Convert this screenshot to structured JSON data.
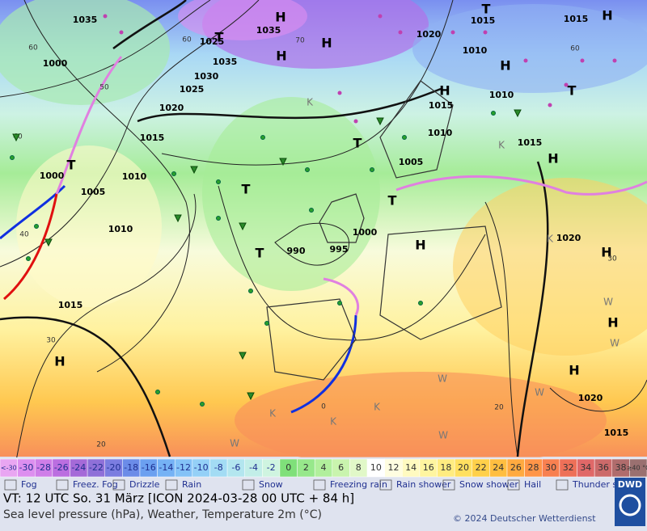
{
  "map": {
    "pressure_labels": [
      "1035",
      "1025",
      "1035",
      "1035",
      "1030",
      "1025",
      "1020",
      "1015",
      "1010",
      "1005",
      "1000",
      "1000",
      "1010",
      "1015",
      "990",
      "995",
      "1000",
      "1020",
      "1015",
      "1015",
      "1010",
      "1010",
      "1015",
      "1010",
      "1005",
      "1015",
      "1020",
      "1020",
      "1015"
    ],
    "centers": [
      "H",
      "H",
      "H",
      "H",
      "H",
      "H",
      "H",
      "H",
      "H",
      "H",
      "H",
      "H",
      "T",
      "T",
      "T",
      "T",
      "T",
      "T",
      "T",
      "T"
    ],
    "temperature_labels": [
      "60",
      "50",
      "40",
      "40",
      "30",
      "20",
      "70",
      "60",
      "60",
      "0",
      "20",
      "30"
    ],
    "other_labels": [
      "K",
      "K",
      "K",
      "K",
      "K",
      "K",
      "W",
      "W",
      "W",
      "W",
      "W",
      "W"
    ]
  },
  "legend": {
    "cells": [
      {
        "label": "<-30",
        "color": "#e9a6f2"
      },
      {
        "label": "-30",
        "color": "#dd8fef"
      },
      {
        "label": "-28",
        "color": "#cf7ee8"
      },
      {
        "label": "-26",
        "color": "#bb6ee0"
      },
      {
        "label": "-24",
        "color": "#a56ad8"
      },
      {
        "label": "-22",
        "color": "#8f70d8"
      },
      {
        "label": "-20",
        "color": "#7b7de0"
      },
      {
        "label": "-18",
        "color": "#6b8ce8"
      },
      {
        "label": "-16",
        "color": "#6ba0f0"
      },
      {
        "label": "-14",
        "color": "#75b2f5"
      },
      {
        "label": "-12",
        "color": "#84c2f7"
      },
      {
        "label": "-10",
        "color": "#94d0f7"
      },
      {
        "label": "-8",
        "color": "#a3dcf4"
      },
      {
        "label": "-6",
        "color": "#b3e6ef"
      },
      {
        "label": "-4",
        "color": "#c2eee8"
      },
      {
        "label": "-2",
        "color": "#cff4e0"
      },
      {
        "label": "0",
        "color": "#7fe07a"
      },
      {
        "label": "2",
        "color": "#97e88b"
      },
      {
        "label": "4",
        "color": "#b1ef9c"
      },
      {
        "label": "6",
        "color": "#c9f4ae"
      },
      {
        "label": "8",
        "color": "#e1f8c8"
      },
      {
        "label": "10",
        "color": "#ffffff"
      },
      {
        "label": "12",
        "color": "#fffde0"
      },
      {
        "label": "14",
        "color": "#fffac0"
      },
      {
        "label": "16",
        "color": "#fff5a0"
      },
      {
        "label": "18",
        "color": "#ffec80"
      },
      {
        "label": "20",
        "color": "#ffe060"
      },
      {
        "label": "22",
        "color": "#ffd04a"
      },
      {
        "label": "24",
        "color": "#ffbe40"
      },
      {
        "label": "26",
        "color": "#ffaa40"
      },
      {
        "label": "28",
        "color": "#ff9548"
      },
      {
        "label": "30",
        "color": "#f88050"
      },
      {
        "label": "32",
        "color": "#ee7058"
      },
      {
        "label": "34",
        "color": "#e06868"
      },
      {
        "label": "36",
        "color": "#cc6a6a"
      },
      {
        "label": "38",
        "color": "#b06c6c"
      },
      {
        "label": "≥40 °C",
        "color": "#9a7070"
      }
    ],
    "weather": [
      "Fog",
      "Freez. Fog",
      "Drizzle",
      "Rain",
      "Snow",
      "Freezing rain",
      "Rain shower",
      "Snow shower",
      "Hail",
      "Thunder storm"
    ]
  },
  "footer": {
    "valid_time": "VT: 12 UTC So.  31 März [ICON 2024-03-28  00 UTC + 84 h]",
    "subtitle": "Sea level pressure (hPa), Weather, Temperature 2m (°C)",
    "copyright": "© 2024 Deutscher Wetterdienst",
    "logo": "DWD"
  }
}
